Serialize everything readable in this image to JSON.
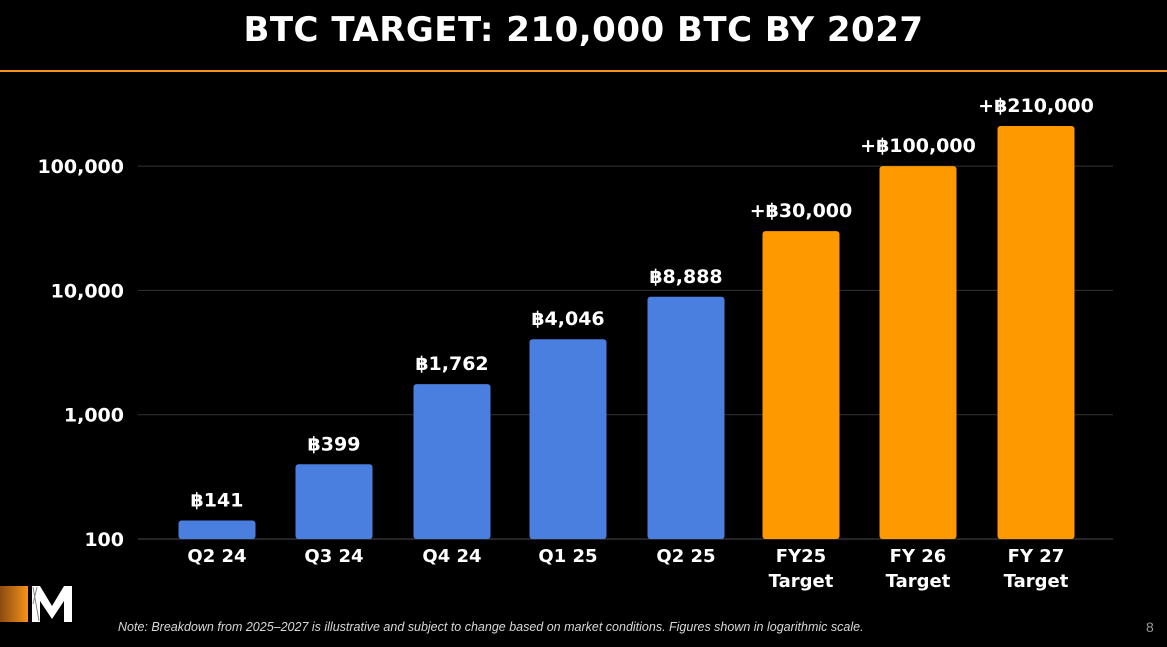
{
  "slide": {
    "title": "BTC TARGET: 210,000 BTC BY 2027",
    "note": "Note: Breakdown from 2025–2027 is illustrative and subject to change based on market conditions. Figures shown in logarithmic scale.",
    "page_number": "8",
    "logo_icon": "m-logo-icon",
    "accent_color": "#f7931a"
  },
  "chart_data": {
    "type": "bar",
    "yscale": "log",
    "ylim": [
      100,
      250000
    ],
    "yticks": [
      100,
      1000,
      10000,
      100000
    ],
    "ytick_labels": [
      "100",
      "1,000",
      "10,000",
      "100,000"
    ],
    "grid": true,
    "categories": [
      [
        "Q2 24"
      ],
      [
        "Q3 24"
      ],
      [
        "Q4 24"
      ],
      [
        "Q1 25"
      ],
      [
        "Q2 25"
      ],
      [
        "FY25",
        "Target"
      ],
      [
        "FY 26",
        "Target"
      ],
      [
        "FY 27",
        "Target"
      ]
    ],
    "values": [
      141,
      399,
      1762,
      4046,
      8888,
      30000,
      100000,
      210000
    ],
    "data_labels": [
      "฿141",
      "฿399",
      "฿1,762",
      "฿4,046",
      "฿8,888",
      "+฿30,000",
      "+฿100,000",
      "+฿210,000"
    ],
    "bar_colors": [
      "#4a7fe0",
      "#4a7fe0",
      "#4a7fe0",
      "#4a7fe0",
      "#4a7fe0",
      "#ff9900",
      "#ff9900",
      "#ff9900"
    ]
  }
}
